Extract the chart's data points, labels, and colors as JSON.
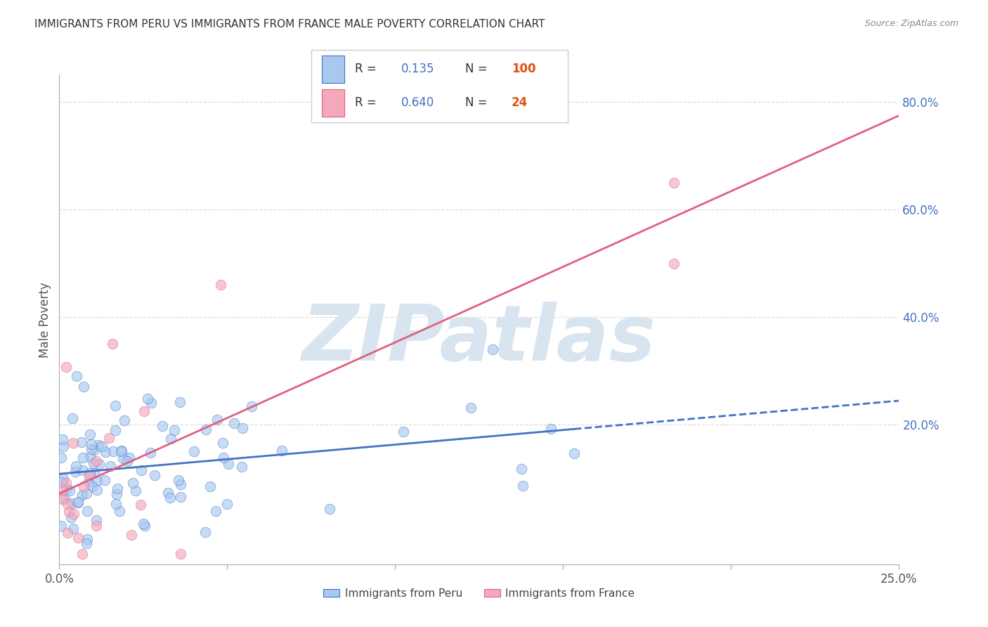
{
  "title": "IMMIGRANTS FROM PERU VS IMMIGRANTS FROM FRANCE MALE POVERTY CORRELATION CHART",
  "source": "Source: ZipAtlas.com",
  "ylabel": "Male Poverty",
  "x_min": 0.0,
  "x_max": 0.25,
  "y_min": -0.06,
  "y_max": 0.85,
  "y_ticks_right": [
    0.2,
    0.4,
    0.6,
    0.8
  ],
  "y_tick_labels_right": [
    "20.0%",
    "40.0%",
    "60.0%",
    "80.0%"
  ],
  "peru_R": 0.135,
  "peru_N": 100,
  "france_R": 0.64,
  "france_N": 24,
  "peru_color": "#A8C8F0",
  "france_color": "#F4A8BC",
  "trend_peru_color": "#4472C4",
  "trend_france_color": "#E06080",
  "watermark_text": "ZIPatlas",
  "watermark_color": "#D8E4F0",
  "legend_label_peru": "Immigrants from Peru",
  "legend_label_france": "Immigrants from France",
  "r_n_text_color": "#4472C4",
  "n_value_color": "#E05010",
  "r_label_color": "#333333",
  "legend_border_color": "#CCCCCC",
  "grid_color": "#DDDDDD",
  "spine_color": "#AAAAAA",
  "title_color": "#333333",
  "source_color": "#888888",
  "tick_color": "#555555",
  "ylabel_color": "#555555"
}
